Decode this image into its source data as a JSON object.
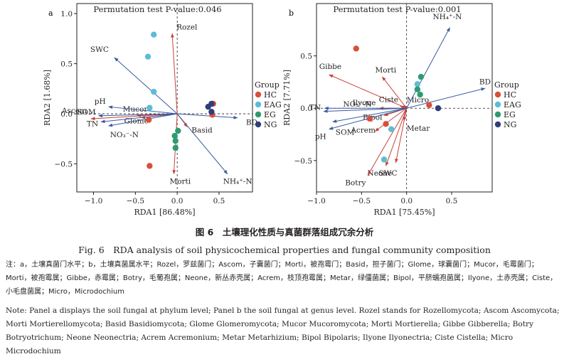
{
  "figure": {
    "caption_cn": "图 6　土壤理化性质与真菌群落组成冗余分析",
    "caption_en": "Fig. 6　RDA analysis of soil physicochemical properties and fungal community composition",
    "note_cn": "注：a，土壤真菌门水平；b，土壤真菌属水平；Rozel，罗兹菌门；Ascom，子囊菌门；Morti，被孢霉门；Basid，担子菌门；Glome，球囊菌门；Mucor，毛霉菌门；Morti，被孢霉属；Gibbe，赤霉属；Botry，毛葡孢属；Neone，新丛赤壳属；Acrem，枝顶孢霉属；Metar，绿僵菌属；Bipol，平脐蠕孢菌属；Ilyone，土赤壳属；Ciste，小毛盘菌属；Micro，Microdochium",
    "note_en": "Note: Panel a displays the soil fungal at phylum level; Panel b the soil fungal at genus level. Rozel stands for Rozellomycota; Ascom Ascomycota; Morti Mortierellomycota; Basid Basidiomycota; Glome Glomeromycota; Mucor Mucoromycota; Morti Mortierella; Gibbe Gibberella; Botry Botryotrichum; Neone Neonectria; Acrem Acremonium; Metar Metarhizium; Bipol Bipolaris; Ilyone Ilyonectria; Ciste Cistella; Micro Microdochium"
  },
  "colors": {
    "HC": "#d94f3a",
    "EAG": "#5bbdd6",
    "EG": "#2e9a70",
    "NG": "#2f3f7a",
    "species_arrow": "#c8433b",
    "env_arrow": "#3a5aa0",
    "axes": "#231f20"
  },
  "chart_data": [
    {
      "panel": "a",
      "type": "scatter",
      "title": "Permutation test P-value:0.046",
      "xlabel": "RDA1 [86.48%]",
      "ylabel": "RDA2 [1.68%]",
      "xlim": [
        -1.2,
        0.9
      ],
      "ylim": [
        -0.78,
        1.1
      ],
      "xticks": [
        -1.0,
        -0.5,
        0.0,
        0.5
      ],
      "xtick_labels": [
        "−1.0",
        "−0.5",
        "0.0",
        "0.5"
      ],
      "yticks": [
        -0.5,
        0.0,
        0.5,
        1.0
      ],
      "ytick_labels": [
        "−0.5",
        "0.0",
        "0.5",
        "1.0"
      ],
      "legend": {
        "title": "Group",
        "position": "right",
        "entries": [
          "HC",
          "EAG",
          "EG",
          "NG"
        ]
      },
      "points": [
        {
          "group": "EAG",
          "x": -0.28,
          "y": 0.79
        },
        {
          "group": "EAG",
          "x": -0.35,
          "y": 0.57
        },
        {
          "group": "EAG",
          "x": -0.28,
          "y": 0.22
        },
        {
          "group": "EAG",
          "x": -0.33,
          "y": 0.06
        },
        {
          "group": "HC",
          "x": -0.34,
          "y": -0.06
        },
        {
          "group": "HC",
          "x": -0.33,
          "y": -0.52
        },
        {
          "group": "HC",
          "x": 0.43,
          "y": 0.1
        },
        {
          "group": "HC",
          "x": 0.42,
          "y": -0.01
        },
        {
          "group": "EG",
          "x": -0.03,
          "y": -0.22
        },
        {
          "group": "EG",
          "x": -0.02,
          "y": -0.27
        },
        {
          "group": "EG",
          "x": -0.02,
          "y": -0.34
        },
        {
          "group": "EG",
          "x": 0.01,
          "y": -0.17
        },
        {
          "group": "NG",
          "x": 0.37,
          "y": 0.07
        },
        {
          "group": "NG",
          "x": 0.41,
          "y": 0.1
        },
        {
          "group": "NG",
          "x": 0.41,
          "y": 0.02
        }
      ],
      "species_arrows": [
        {
          "label": "Rozel",
          "x": -0.06,
          "y": 0.8
        },
        {
          "label": "Mucor",
          "x": -0.48,
          "y": -0.02
        },
        {
          "label": "Glome",
          "x": -0.43,
          "y": -0.04
        },
        {
          "label": "Ascom",
          "x": -1.03,
          "y": -0.05
        },
        {
          "label": "Basid",
          "x": 0.12,
          "y": -0.13
        },
        {
          "label": "Morti",
          "x": -0.04,
          "y": -0.6
        }
      ],
      "env_arrows": [
        {
          "label": "SWC",
          "x": -0.75,
          "y": 0.56
        },
        {
          "label": "pH",
          "x": -0.82,
          "y": 0.07
        },
        {
          "label": "SOM",
          "x": -0.94,
          "y": -0.02
        },
        {
          "label": "TN",
          "x": -0.91,
          "y": -0.08
        },
        {
          "label": "NO₃⁻-N",
          "x": -0.82,
          "y": -0.12
        },
        {
          "label": "BD",
          "x": 0.72,
          "y": -0.04
        },
        {
          "label": "NH₄⁺-N",
          "x": 0.6,
          "y": -0.6
        }
      ]
    },
    {
      "panel": "b",
      "type": "scatter",
      "title": "Permutation test P-value:0.001",
      "xlabel": "RDA1 [75.45%]",
      "ylabel": "RDA2 [7.71%]",
      "xlim": [
        -1.0,
        0.95
      ],
      "ylim": [
        -0.8,
        1.0
      ],
      "xticks": [
        -1.0,
        -0.5,
        0.0,
        0.5
      ],
      "xtick_labels": [
        "−1.0",
        "−0.5",
        "0.0",
        "0.5"
      ],
      "yticks": [
        -0.5,
        0.0,
        0.5
      ],
      "ytick_labels": [
        "−0.5",
        "0.0",
        "0.5"
      ],
      "legend": {
        "title": "Group",
        "position": "right",
        "entries": [
          "HC",
          "EAG",
          "EG",
          "NG"
        ]
      },
      "points": [
        {
          "group": "HC",
          "x": -0.56,
          "y": 0.57
        },
        {
          "group": "HC",
          "x": -0.41,
          "y": -0.1
        },
        {
          "group": "HC",
          "x": 0.25,
          "y": 0.03
        },
        {
          "group": "HC",
          "x": -0.23,
          "y": -0.15
        },
        {
          "group": "EAG",
          "x": -0.25,
          "y": -0.49
        },
        {
          "group": "EAG",
          "x": -0.17,
          "y": -0.2
        },
        {
          "group": "EAG",
          "x": 0.12,
          "y": 0.23
        },
        {
          "group": "EG",
          "x": 0.16,
          "y": 0.3
        },
        {
          "group": "EG",
          "x": 0.12,
          "y": 0.18
        },
        {
          "group": "EG",
          "x": 0.15,
          "y": 0.13
        },
        {
          "group": "NG",
          "x": 0.35,
          "y": 0.0
        }
      ],
      "species_arrows": [
        {
          "label": "Morti",
          "x": -0.27,
          "y": 0.3
        },
        {
          "label": "Gibbe",
          "x": -0.86,
          "y": 0.32
        },
        {
          "label": "Ciste",
          "x": -0.07,
          "y": 0.02
        },
        {
          "label": "Micro",
          "x": -0.03,
          "y": 0.03
        },
        {
          "label": "Ilyone",
          "x": -0.3,
          "y": 0.0
        },
        {
          "label": "Bipol",
          "x": -0.25,
          "y": -0.07
        },
        {
          "label": "Acrem",
          "x": -0.35,
          "y": -0.22
        },
        {
          "label": "Metar",
          "x": -0.03,
          "y": -0.12
        },
        {
          "label": "Neone",
          "x": -0.23,
          "y": -0.55
        },
        {
          "label": "Botry",
          "x": -0.43,
          "y": -0.64
        },
        {
          "label": "SWC",
          "x": -0.12,
          "y": -0.52
        }
      ],
      "env_arrows": [
        {
          "label": "NH₄⁺-N",
          "x": 0.48,
          "y": 0.77
        },
        {
          "label": "BD",
          "x": 0.87,
          "y": 0.19
        },
        {
          "label": "NO₃⁻-N",
          "x": -0.91,
          "y": 0.0
        },
        {
          "label": "TN",
          "x": -0.92,
          "y": -0.03
        },
        {
          "label": "pH",
          "x": -0.86,
          "y": -0.2
        },
        {
          "label": "SOM",
          "x": -0.82,
          "y": -0.13
        }
      ]
    }
  ]
}
